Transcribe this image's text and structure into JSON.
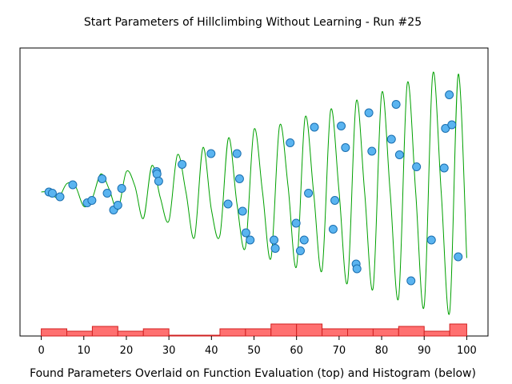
{
  "chart_data": {
    "type": "scatter",
    "title": "Start Parameters of Hillclimbing Without Learning - Run #25",
    "xlabel": "Found Parameters Overlaid on Function Evaluation (top) and Histogram (below)",
    "ylabel": "",
    "xlim": [
      -5,
      105
    ],
    "ylim": [
      -1.2,
      1.2
    ],
    "x_ticks": [
      0,
      10,
      20,
      30,
      40,
      50,
      60,
      70,
      80,
      90,
      100
    ],
    "x_tick_labels": [
      "0",
      "10",
      "20",
      "30",
      "40",
      "50",
      "60",
      "70",
      "80",
      "90",
      "100"
    ],
    "grid": false,
    "legend": "none",
    "colors": {
      "curve": "#00a000",
      "points_fill": "#5ab4f0",
      "points_stroke": "#1a6fb0",
      "histogram_fill": "#ff7070",
      "histogram_stroke": "#d02020"
    },
    "series": [
      {
        "type": "line",
        "x": [
          0,
          2,
          4,
          6,
          8,
          10,
          12,
          14,
          16,
          18,
          20,
          22,
          24,
          26,
          28,
          30,
          32,
          34,
          36,
          38,
          40,
          42,
          44,
          46,
          48,
          50,
          52,
          54,
          56,
          58,
          60,
          62,
          64,
          66,
          68,
          70,
          72,
          74,
          76,
          78,
          80,
          82,
          84,
          86,
          88,
          90,
          92,
          94,
          96,
          98,
          100
        ],
        "y": [
          0.0,
          0.0,
          -0.05,
          0.07,
          0.05,
          -0.12,
          -0.05,
          0.15,
          0.02,
          -0.15,
          0.17,
          0.05,
          -0.22,
          0.22,
          -0.05,
          -0.24,
          0.31,
          0.0,
          -0.38,
          0.37,
          -0.15,
          -0.36,
          0.45,
          -0.1,
          -0.46,
          0.52,
          0.0,
          -0.55,
          0.55,
          0.05,
          -0.62,
          0.62,
          0.0,
          -0.65,
          0.68,
          0.0,
          -0.75,
          0.75,
          0.0,
          -0.8,
          0.82,
          0.0,
          -0.88,
          0.9,
          0.0,
          -0.95,
          0.98,
          0.0,
          -1.0,
          0.98,
          -0.55
        ]
      },
      {
        "type": "scatter",
        "x": [
          1.8,
          2.6,
          4.4,
          7.4,
          10.8,
          11.9,
          14.3,
          15.5,
          17.0,
          18.0,
          18.9,
          27.1,
          27.2,
          27.6,
          33.1,
          39.9,
          43.9,
          46.0,
          46.6,
          47.3,
          48.1,
          49.1,
          54.7,
          55.0,
          58.5,
          59.9,
          60.9,
          61.8,
          62.8,
          64.2,
          68.6,
          69.0,
          70.5,
          71.5,
          74.0,
          74.2,
          77.0,
          77.7,
          82.3,
          83.4,
          84.2,
          86.9,
          88.2,
          91.7,
          94.7,
          95.0,
          95.9,
          96.5,
          98.0
        ],
        "y": [
          0.0,
          -0.01,
          -0.04,
          0.06,
          -0.09,
          -0.07,
          0.11,
          -0.01,
          -0.15,
          -0.11,
          0.03,
          0.17,
          0.15,
          0.09,
          0.23,
          0.32,
          -0.1,
          0.32,
          0.11,
          -0.16,
          -0.34,
          -0.4,
          -0.4,
          -0.47,
          0.41,
          -0.26,
          -0.49,
          -0.4,
          -0.01,
          0.54,
          -0.31,
          -0.07,
          0.55,
          0.37,
          -0.6,
          -0.64,
          0.66,
          0.34,
          0.44,
          0.73,
          0.31,
          -0.74,
          0.21,
          -0.4,
          0.2,
          0.53,
          0.81,
          0.56,
          -0.54
        ]
      }
    ],
    "histogram": {
      "bin_edges": [
        0,
        6,
        12,
        18,
        24,
        30,
        36,
        42,
        48,
        54,
        60,
        66,
        72,
        78,
        84,
        90,
        96,
        100
      ],
      "counts": [
        3,
        2,
        4,
        2,
        3,
        0,
        0,
        3,
        3,
        5,
        5,
        3,
        3,
        3,
        4,
        2,
        5
      ]
    }
  }
}
